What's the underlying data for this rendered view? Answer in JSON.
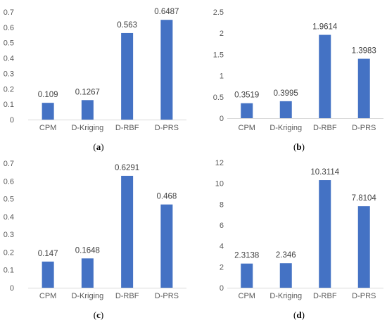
{
  "bar_color": "#4472C4",
  "chart_data": [
    {
      "type": "bar",
      "panel": "a",
      "categories": [
        "CPM",
        "D-Kriging",
        "D-RBF",
        "D-PRS"
      ],
      "values": [
        0.109,
        0.1267,
        0.563,
        0.6487
      ],
      "data_labels": [
        "0.109",
        "0.1267",
        "0.563",
        "0.6487"
      ],
      "ylim": [
        0,
        0.7
      ],
      "yticks": [
        "0",
        "0.1",
        "0.2",
        "0.3",
        "0.4",
        "0.5",
        "0.6",
        "0.7"
      ],
      "grid": false,
      "title": "",
      "xlabel": "",
      "ylabel": ""
    },
    {
      "type": "bar",
      "panel": "b",
      "categories": [
        "CPM",
        "D-Kriging",
        "D-RBF",
        "D-PRS"
      ],
      "values": [
        0.3519,
        0.3995,
        1.9614,
        1.3983
      ],
      "data_labels": [
        "0.3519",
        "0.3995",
        "1.9614",
        "1.3983"
      ],
      "ylim": [
        0,
        2.5
      ],
      "yticks": [
        "0",
        "0.5",
        "1",
        "1.5",
        "2",
        "2.5"
      ],
      "grid": false,
      "title": "",
      "xlabel": "",
      "ylabel": ""
    },
    {
      "type": "bar",
      "panel": "c",
      "categories": [
        "CPM",
        "D-Kriging",
        "D-RBF",
        "D-PRS"
      ],
      "values": [
        0.147,
        0.1648,
        0.6291,
        0.468
      ],
      "data_labels": [
        "0.147",
        "0.1648",
        "0.6291",
        "0.468"
      ],
      "ylim": [
        0,
        0.7
      ],
      "yticks": [
        "0",
        "0.1",
        "0.2",
        "0.3",
        "0.4",
        "0.5",
        "0.6",
        "0.7"
      ],
      "grid": false,
      "title": "",
      "xlabel": "",
      "ylabel": ""
    },
    {
      "type": "bar",
      "panel": "d",
      "categories": [
        "CPM",
        "D-Kriging",
        "D-RBF",
        "D-PRS"
      ],
      "values": [
        2.3138,
        2.346,
        10.3114,
        7.8104
      ],
      "data_labels": [
        "2.3138",
        "2.346",
        "10.3114",
        "7.8104"
      ],
      "ylim": [
        0,
        12
      ],
      "yticks": [
        "0",
        "2",
        "4",
        "6",
        "8",
        "10",
        "12"
      ],
      "grid": false,
      "title": "",
      "xlabel": "",
      "ylabel": ""
    }
  ],
  "subcaptions": [
    {
      "open": "(",
      "letter": "a",
      "close": ")"
    },
    {
      "open": "(",
      "letter": "b",
      "close": ")"
    },
    {
      "open": "(",
      "letter": "c",
      "close": ")"
    },
    {
      "open": "(",
      "letter": "d",
      "close": ")"
    }
  ]
}
